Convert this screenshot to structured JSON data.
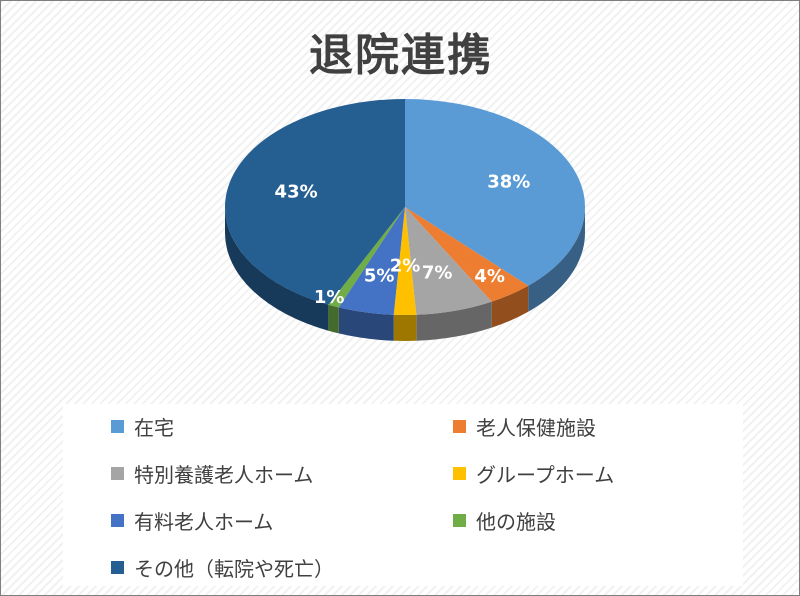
{
  "chart_data": {
    "type": "pie",
    "title": "退院連携",
    "categories": [
      "在宅",
      "老人保健施設",
      "特別養護老人ホーム",
      "グループホーム",
      "有料老人ホーム",
      "他の施設",
      "その他（転院や死亡）"
    ],
    "values": [
      38,
      4,
      7,
      2,
      5,
      1,
      43
    ],
    "data_labels": [
      "38%",
      "4%",
      "7%",
      "2%",
      "5%",
      "1%",
      "43%"
    ],
    "colors": [
      "#5b9bd5",
      "#ed7d31",
      "#a5a5a5",
      "#ffc000",
      "#4472c4",
      "#70ad47",
      "#255e91"
    ],
    "legend_position": "bottom",
    "style": "3d-tilted"
  }
}
